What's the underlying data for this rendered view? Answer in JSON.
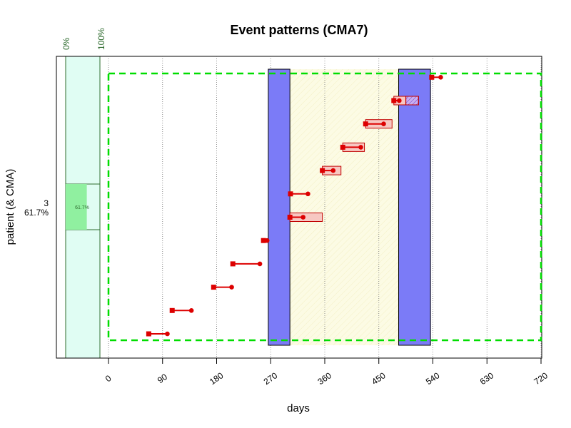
{
  "chart_data": {
    "type": "timeline",
    "title": "Event patterns (CMA7)",
    "xlabel": "days",
    "ylabel": "patient (& CMA)",
    "xlim": [
      0,
      720
    ],
    "x_ticks": [
      "0",
      "90",
      "180",
      "270",
      "360",
      "450",
      "540",
      "630",
      "720"
    ],
    "patient": {
      "id": "3",
      "cma_label": "61.7%"
    },
    "cma_scale_labels": {
      "min": "0%",
      "max": "100%"
    },
    "cma_value": 0.617,
    "cma_bar_label": "61.7%",
    "observation_window": {
      "start": 0,
      "end": 720
    },
    "follow_up_windows": [
      {
        "start": 266,
        "end": 302
      },
      {
        "start": 483,
        "end": 536
      }
    ],
    "highlight_window": {
      "start": 302,
      "end": 483
    },
    "events": [
      {
        "start": 67,
        "end": 98
      },
      {
        "start": 106,
        "end": 138
      },
      {
        "start": 175,
        "end": 205
      },
      {
        "start": 207,
        "end": 252
      },
      {
        "start": 258,
        "end": 264
      },
      {
        "start": 302,
        "end": 324
      },
      {
        "start": 303,
        "end": 332
      },
      {
        "start": 356,
        "end": 374
      },
      {
        "start": 390,
        "end": 420
      },
      {
        "start": 428,
        "end": 458
      },
      {
        "start": 475,
        "end": 484
      },
      {
        "start": 538,
        "end": 553
      }
    ],
    "supply_boxes": [
      {
        "start": 302,
        "end": 356,
        "hatched": false
      },
      {
        "start": 356,
        "end": 387,
        "hatched": false
      },
      {
        "start": 390,
        "end": 426,
        "hatched": false
      },
      {
        "start": 428,
        "end": 472,
        "hatched": false
      },
      {
        "start": 475,
        "end": 495,
        "hatched": false
      },
      {
        "start": 495,
        "end": 516,
        "hatched": true
      }
    ],
    "colors": {
      "event": "#dd0000",
      "follow_up_window": "#7b7bf7",
      "observation_window": "#00dd00",
      "cma_background": "#e0fdf3",
      "cma_bar": "#90f0a0",
      "highlight": "#fcfbe4",
      "supply_fill": "#f7c8c2",
      "hatched_fill": "#a070e0"
    },
    "grid": "vertical-dotted"
  }
}
